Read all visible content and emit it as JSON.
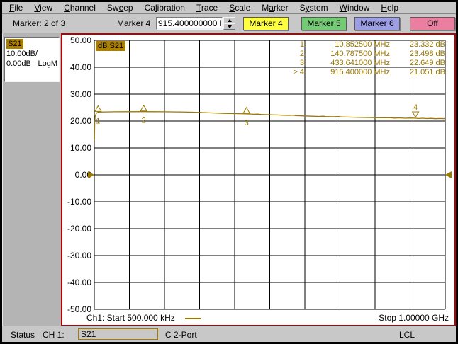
{
  "menu": {
    "items": [
      {
        "label": "File",
        "accel": 0
      },
      {
        "label": "View",
        "accel": 0
      },
      {
        "label": "Channel",
        "accel": 0
      },
      {
        "label": "Sweep",
        "accel": 2
      },
      {
        "label": "Calibration",
        "accel": 2
      },
      {
        "label": "Trace",
        "accel": 0
      },
      {
        "label": "Scale",
        "accel": 0
      },
      {
        "label": "Marker",
        "accel": 1
      },
      {
        "label": "System",
        "accel": 1
      },
      {
        "label": "Window",
        "accel": 0
      },
      {
        "label": "Help",
        "accel": 0
      }
    ]
  },
  "toolbar": {
    "status_text": "Marker: 2 of 3",
    "field_label": "Marker 4",
    "field_value": "915.400000000 MH",
    "buttons": [
      {
        "label": "Marker 4",
        "color": "#ffff40"
      },
      {
        "label": "Marker 5",
        "color": "#73cb73"
      },
      {
        "label": "Marker 6",
        "color": "#9e9ee6"
      },
      {
        "label": "Off",
        "color": "#ec7fa0"
      }
    ]
  },
  "sidebar": {
    "trace_id": "S21",
    "scale": "10.00dB/",
    "ref": "0.00dB",
    "format": "LogM"
  },
  "chart_data": {
    "type": "line",
    "title": "dB S21",
    "ylabel": "dB",
    "ylim": [
      -50,
      50
    ],
    "xlim_mhz": [
      0.5,
      1000
    ],
    "grid": true,
    "grid_cols": 10,
    "y_ticks": [
      "50.00",
      "40.00",
      "30.00",
      "20.00",
      "10.00",
      "0.00",
      "-10.00",
      "-20.00",
      "-30.00",
      "-40.00",
      "-50.00"
    ],
    "x_start_label": "Ch1: Start  500.000 kHz",
    "x_stop_label": "Stop  1.00000 GHz",
    "reference_level_db": 0,
    "trace_color": "#9c7a00",
    "series": [
      {
        "name": "S21",
        "points": [
          [
            0.5,
            12.8
          ],
          [
            1.2,
            19.5
          ],
          [
            2.5,
            21.8
          ],
          [
            5,
            22.7
          ],
          [
            8,
            23.1
          ],
          [
            10.85,
            23.33
          ],
          [
            30,
            23.4
          ],
          [
            60,
            23.44
          ],
          [
            100,
            23.47
          ],
          [
            140.79,
            23.5
          ],
          [
            170,
            23.47
          ],
          [
            200,
            23.44
          ],
          [
            240,
            23.4
          ],
          [
            280,
            23.3
          ],
          [
            310,
            23.15
          ],
          [
            340,
            23.0
          ],
          [
            370,
            22.85
          ],
          [
            400,
            22.75
          ],
          [
            433.64,
            22.65
          ],
          [
            455,
            22.52
          ],
          [
            465,
            22.58
          ],
          [
            475,
            22.45
          ],
          [
            500,
            22.35
          ],
          [
            520,
            22.25
          ],
          [
            540,
            22.15
          ],
          [
            555,
            22.1
          ],
          [
            565,
            22.18
          ],
          [
            575,
            22.0
          ],
          [
            600,
            21.9
          ],
          [
            620,
            21.8
          ],
          [
            640,
            21.72
          ],
          [
            652,
            21.8
          ],
          [
            660,
            21.65
          ],
          [
            680,
            21.6
          ],
          [
            695,
            21.68
          ],
          [
            705,
            21.55
          ],
          [
            730,
            21.45
          ],
          [
            760,
            21.35
          ],
          [
            790,
            21.28
          ],
          [
            820,
            21.2
          ],
          [
            845,
            21.25
          ],
          [
            855,
            21.1
          ],
          [
            870,
            21.18
          ],
          [
            885,
            21.05
          ],
          [
            900,
            21.12
          ],
          [
            915.4,
            21.05
          ],
          [
            925,
            20.95
          ],
          [
            935,
            21.06
          ],
          [
            948,
            20.92
          ],
          [
            960,
            21.0
          ],
          [
            972,
            20.88
          ],
          [
            985,
            20.95
          ],
          [
            1000,
            20.88
          ]
        ]
      }
    ],
    "markers": [
      {
        "n": "1",
        "freq_mhz": 10.8525,
        "db": 23.332,
        "readout_label": "1:",
        "freq_label": "10.852500 MHz",
        "value_label": "23.332 dB",
        "active": false
      },
      {
        "n": "2",
        "freq_mhz": 140.7875,
        "db": 23.498,
        "readout_label": "2:",
        "freq_label": "140.787500 MHz",
        "value_label": "23.498 dB",
        "active": false
      },
      {
        "n": "3",
        "freq_mhz": 433.641,
        "db": 22.649,
        "readout_label": "3:",
        "freq_label": "433.641000 MHz",
        "value_label": "22.649 dB",
        "active": false
      },
      {
        "n": "4",
        "freq_mhz": 915.4,
        "db": 21.051,
        "readout_label": "> 4:",
        "freq_label": "915.400000 MHz",
        "value_label": "21.051 dB",
        "active": true
      }
    ]
  },
  "statusbar": {
    "label": "Status",
    "channel": "CH 1:",
    "measurement": "S21",
    "cal": "C  2-Port",
    "lcl": "LCL"
  }
}
